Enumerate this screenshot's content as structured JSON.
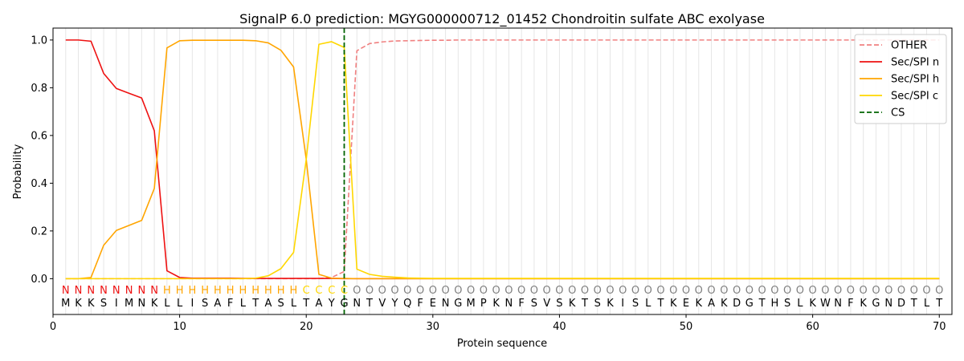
{
  "chart_data": {
    "type": "line",
    "title": "SignalP 6.0 prediction: MGYG000000712_01452 Chondroitin sulfate ABC exolyase",
    "xlabel": "Protein sequence",
    "ylabel": "Probability",
    "xlim": [
      0,
      71
    ],
    "ylim": [
      -0.15,
      1.05
    ],
    "xticks": [
      0,
      10,
      20,
      30,
      40,
      50,
      60,
      70
    ],
    "yticks": [
      0.0,
      0.2,
      0.4,
      0.6,
      0.8,
      1.0
    ],
    "xtick_labels": [
      "0",
      "10",
      "20",
      "30",
      "40",
      "50",
      "60",
      "70"
    ],
    "ytick_labels": [
      "0.0",
      "0.2",
      "0.4",
      "0.6",
      "0.8",
      "1.0"
    ],
    "legend_position": "top-right",
    "grid": "vertical lines at each residue",
    "sequence": [
      "M",
      "K",
      "K",
      "S",
      "I",
      "M",
      "N",
      "K",
      "L",
      "L",
      "I",
      "S",
      "A",
      "F",
      "L",
      "T",
      "A",
      "S",
      "L",
      "T",
      "A",
      "Y",
      "G",
      "N",
      "T",
      "V",
      "Y",
      "Q",
      "F",
      "E",
      "N",
      "G",
      "M",
      "P",
      "K",
      "N",
      "F",
      "S",
      "V",
      "S",
      "K",
      "T",
      "S",
      "K",
      "I",
      "S",
      "L",
      "T",
      "K",
      "E",
      "K",
      "A",
      "K",
      "D",
      "G",
      "T",
      "H",
      "S",
      "L",
      "K",
      "W",
      "N",
      "F",
      "K",
      "G",
      "N",
      "D",
      "T",
      "L",
      "T"
    ],
    "region_labels": [
      "N",
      "N",
      "N",
      "N",
      "N",
      "N",
      "N",
      "N",
      "H",
      "H",
      "H",
      "H",
      "H",
      "H",
      "H",
      "H",
      "H",
      "H",
      "H",
      "C",
      "C",
      "C",
      "C",
      "O",
      "O",
      "O",
      "O",
      "O",
      "O",
      "O",
      "O",
      "O",
      "O",
      "O",
      "O",
      "O",
      "O",
      "O",
      "O",
      "O",
      "O",
      "O",
      "O",
      "O",
      "O",
      "O",
      "O",
      "O",
      "O",
      "O",
      "O",
      "O",
      "O",
      "O",
      "O",
      "O",
      "O",
      "O",
      "O",
      "O",
      "O",
      "O",
      "O",
      "O",
      "O",
      "O",
      "O",
      "O",
      "O",
      "O"
    ],
    "region_colors": {
      "N": "#ee1111",
      "H": "#ffa500",
      "C": "#ffd700",
      "O": "#808080"
    },
    "cleavage_site": 23,
    "series": [
      {
        "name": "OTHER",
        "color": "#f08080",
        "dash": "dashed",
        "values": [
          0,
          0,
          0,
          0,
          0,
          0,
          0,
          0,
          0,
          0,
          0,
          0,
          0,
          0,
          0,
          0,
          0,
          0,
          0,
          0,
          0,
          0.005,
          0.03,
          0.955,
          0.985,
          0.992,
          0.996,
          0.997,
          0.998,
          0.999,
          0.999,
          1,
          1,
          1,
          1,
          1,
          1,
          1,
          1,
          1,
          1,
          1,
          1,
          1,
          1,
          1,
          1,
          1,
          1,
          1,
          1,
          1,
          1,
          1,
          1,
          1,
          1,
          1,
          1,
          1,
          1,
          1,
          1,
          1,
          1,
          1,
          1,
          1,
          1,
          1
        ]
      },
      {
        "name": "Sec/SPI n",
        "color": "#ee1111",
        "dash": "solid",
        "values": [
          1,
          1,
          0.995,
          0.86,
          0.797,
          0.777,
          0.757,
          0.62,
          0.033,
          0.005,
          0.002,
          0.002,
          0.002,
          0.002,
          0.001,
          0.001,
          0.001,
          0.001,
          0.001,
          0.001,
          0.001,
          0.001,
          0,
          0,
          0,
          0,
          0,
          0,
          0,
          0,
          0,
          0,
          0,
          0,
          0,
          0,
          0,
          0,
          0,
          0,
          0,
          0,
          0,
          0,
          0,
          0,
          0,
          0,
          0,
          0,
          0,
          0,
          0,
          0,
          0,
          0,
          0,
          0,
          0,
          0,
          0,
          0,
          0,
          0,
          0,
          0,
          0,
          0,
          0,
          0
        ]
      },
      {
        "name": "Sec/SPI h",
        "color": "#ffa500",
        "dash": "solid",
        "values": [
          0,
          0,
          0.005,
          0.14,
          0.202,
          0.223,
          0.244,
          0.378,
          0.967,
          0.997,
          0.999,
          0.999,
          0.999,
          0.999,
          0.999,
          0.997,
          0.988,
          0.957,
          0.887,
          0.5,
          0.018,
          0.002,
          0.001,
          0,
          0,
          0,
          0,
          0,
          0,
          0,
          0,
          0,
          0,
          0,
          0,
          0,
          0,
          0,
          0,
          0,
          0,
          0,
          0,
          0,
          0,
          0,
          0,
          0,
          0,
          0,
          0,
          0,
          0,
          0,
          0,
          0,
          0,
          0,
          0,
          0,
          0,
          0,
          0,
          0,
          0,
          0,
          0,
          0,
          0,
          0
        ]
      },
      {
        "name": "Sec/SPI c",
        "color": "#ffd700",
        "dash": "solid",
        "values": [
          0,
          0,
          0,
          0,
          0,
          0,
          0,
          0,
          0,
          0,
          0,
          0,
          0,
          0,
          0,
          0.002,
          0.012,
          0.042,
          0.11,
          0.5,
          0.982,
          0.993,
          0.969,
          0.04,
          0.018,
          0.01,
          0.006,
          0.003,
          0.002,
          0.001,
          0.001,
          0.001,
          0.001,
          0.001,
          0.001,
          0.001,
          0.001,
          0.001,
          0.001,
          0.001,
          0.001,
          0.001,
          0.001,
          0.001,
          0.001,
          0.001,
          0.001,
          0.001,
          0.001,
          0.001,
          0.001,
          0.001,
          0.001,
          0.001,
          0.001,
          0.001,
          0.001,
          0.001,
          0.001,
          0.001,
          0.001,
          0.001,
          0.001,
          0.001,
          0.001,
          0.001,
          0.001,
          0.001,
          0.001,
          0.001
        ]
      },
      {
        "name": "CS",
        "color": "#006400",
        "dash": "dashed",
        "values": []
      }
    ]
  }
}
